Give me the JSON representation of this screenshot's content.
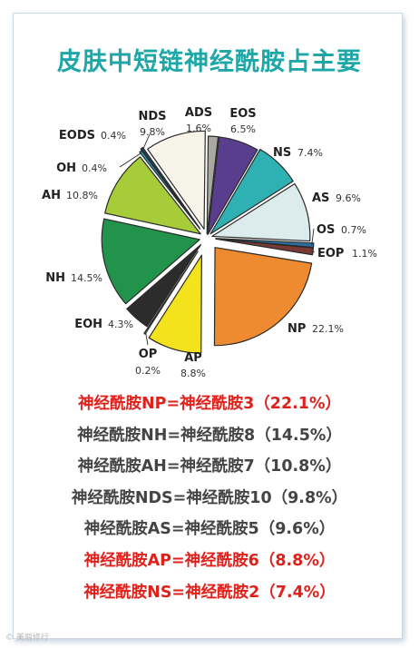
{
  "title": "皮肤中短链神经酰胺占主要",
  "chart_data": {
    "type": "pie",
    "title": "皮肤中短链神经酰胺占主要",
    "slices": [
      {
        "label": "ADS",
        "value": 1.6,
        "value_text": "1.6%",
        "color": "#a9a9a1"
      },
      {
        "label": "EOS",
        "value": 6.5,
        "value_text": "6.5%",
        "color": "#5a3e8e"
      },
      {
        "label": "NS",
        "value": 7.4,
        "value_text": "7.4%",
        "color": "#2fb1b3"
      },
      {
        "label": "AS",
        "value": 9.6,
        "value_text": "9.6%",
        "color": "#dcebec"
      },
      {
        "label": "OS",
        "value": 0.7,
        "value_text": "0.7%",
        "color": "#2e6e9e"
      },
      {
        "label": "EOP",
        "value": 1.1,
        "value_text": "1.1%",
        "color": "#7a3a34"
      },
      {
        "label": "NP",
        "value": 22.1,
        "value_text": "22.1%",
        "color": "#ee8a2f"
      },
      {
        "label": "AP",
        "value": 8.8,
        "value_text": "8.8%",
        "color": "#f4e21c"
      },
      {
        "label": "OP",
        "value": 0.2,
        "value_text": "0.2%",
        "color": "#e8eef4"
      },
      {
        "label": "EOH",
        "value": 4.3,
        "value_text": "4.3%",
        "color": "#2c2c2c"
      },
      {
        "label": "NH",
        "value": 14.5,
        "value_text": "14.5%",
        "color": "#21934a"
      },
      {
        "label": "AH",
        "value": 10.8,
        "value_text": "10.8%",
        "color": "#a6cc3a"
      },
      {
        "label": "OH",
        "value": 0.4,
        "value_text": "0.4%",
        "color": "#2aa6b9"
      },
      {
        "label": "EODS",
        "value": 0.4,
        "value_text": "0.4%",
        "color": "#1f3f66"
      },
      {
        "label": "NDS",
        "value": 9.8,
        "value_text": "9.8%",
        "color": "#f7f4ea"
      }
    ]
  },
  "notes": [
    {
      "text": "神经酰胺NP=神经酰胺3（22.1%）",
      "color": "#e0201b"
    },
    {
      "text": "神经酰胺NH=神经酰胺8（14.5%）",
      "color": "#444444"
    },
    {
      "text": "神经酰胺AH=神经酰胺7（10.8%）",
      "color": "#444444"
    },
    {
      "text": "神经酰胺NDS=神经酰胺10（9.8%）",
      "color": "#444444"
    },
    {
      "text": "神经酰胺AS=神经酰胺5（9.6%）",
      "color": "#444444"
    },
    {
      "text": "神经酰胺AP=神经酰胺6（8.8%）",
      "color": "#e0201b"
    },
    {
      "text": "神经酰胺NS=神经酰胺2（7.4%）",
      "color": "#e0201b"
    }
  ],
  "watermark": "© 美丽修行"
}
